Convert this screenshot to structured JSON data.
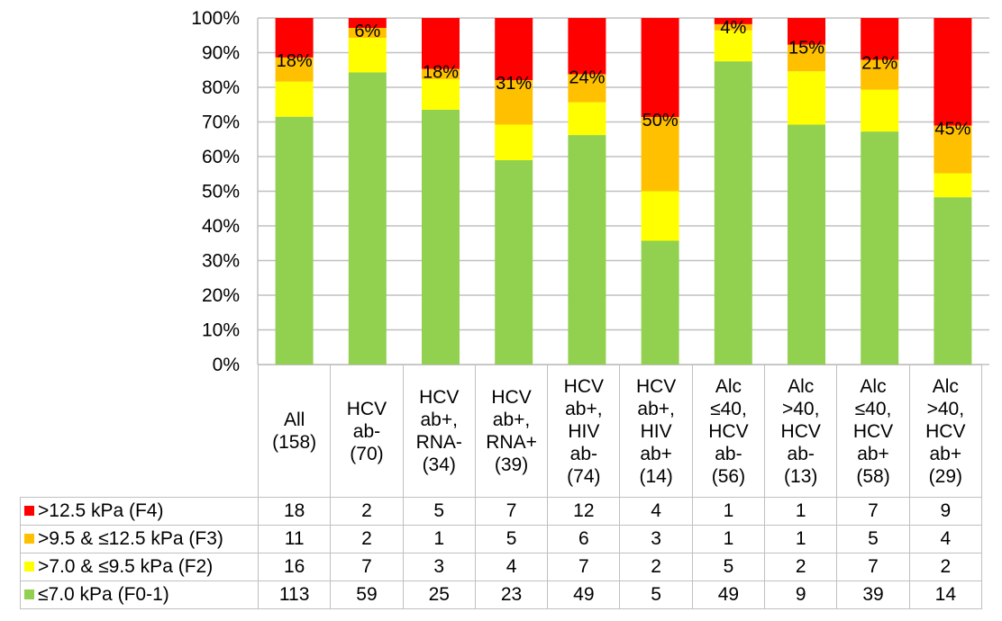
{
  "chart_data": {
    "type": "bar",
    "stacked": true,
    "normalized": true,
    "title": "",
    "xlabel": "",
    "ylabel": "",
    "ylim": [
      0,
      100
    ],
    "yticks": [
      "0%",
      "10%",
      "20%",
      "30%",
      "40%",
      "50%",
      "60%",
      "70%",
      "80%",
      "90%",
      "100%"
    ],
    "grid": true,
    "categories": [
      [
        "All",
        "(158)"
      ],
      [
        "HCV",
        "ab-",
        "(70)"
      ],
      [
        "HCV",
        "ab+,",
        "RNA-",
        "(34)"
      ],
      [
        "HCV",
        "ab+,",
        "RNA+",
        "(39)"
      ],
      [
        "HCV",
        "ab+,",
        "HIV",
        "ab-",
        "(74)"
      ],
      [
        "HCV",
        "ab+,",
        "HIV",
        "ab+",
        "(14)"
      ],
      [
        "Alc",
        "≤40,",
        "HCV",
        "ab-",
        "(56)"
      ],
      [
        "Alc",
        ">40,",
        "HCV",
        "ab-",
        "(13)"
      ],
      [
        "Alc",
        "≤40,",
        "HCV",
        "ab+",
        "(58)"
      ],
      [
        "Alc",
        ">40,",
        "HCV",
        "ab+",
        "(29)"
      ]
    ],
    "series": [
      {
        "name": "≤7.0 kPa (F0-1)",
        "color": "#92d050",
        "values": [
          113,
          59,
          25,
          23,
          49,
          5,
          49,
          9,
          39,
          14
        ]
      },
      {
        "name": ">7.0 & ≤9.5 kPa (F2)",
        "color": "#ffff00",
        "values": [
          16,
          7,
          3,
          4,
          7,
          2,
          5,
          2,
          7,
          2
        ]
      },
      {
        "name": ">9.5 & ≤12.5 kPa (F3)",
        "color": "#ffc000",
        "values": [
          11,
          2,
          1,
          5,
          6,
          3,
          1,
          1,
          5,
          4
        ]
      },
      {
        "name": ">12.5 kPa (F4)",
        "color": "#ff0000",
        "values": [
          18,
          2,
          5,
          7,
          12,
          4,
          1,
          1,
          7,
          9
        ]
      }
    ],
    "data_labels": [
      "18%",
      "6%",
      "18%",
      "31%",
      "24%",
      "50%",
      "4%",
      "15%",
      "21%",
      "45%"
    ],
    "legend_placement": "data-table-left"
  },
  "table": {
    "row_order": [
      3,
      2,
      1,
      0
    ]
  }
}
